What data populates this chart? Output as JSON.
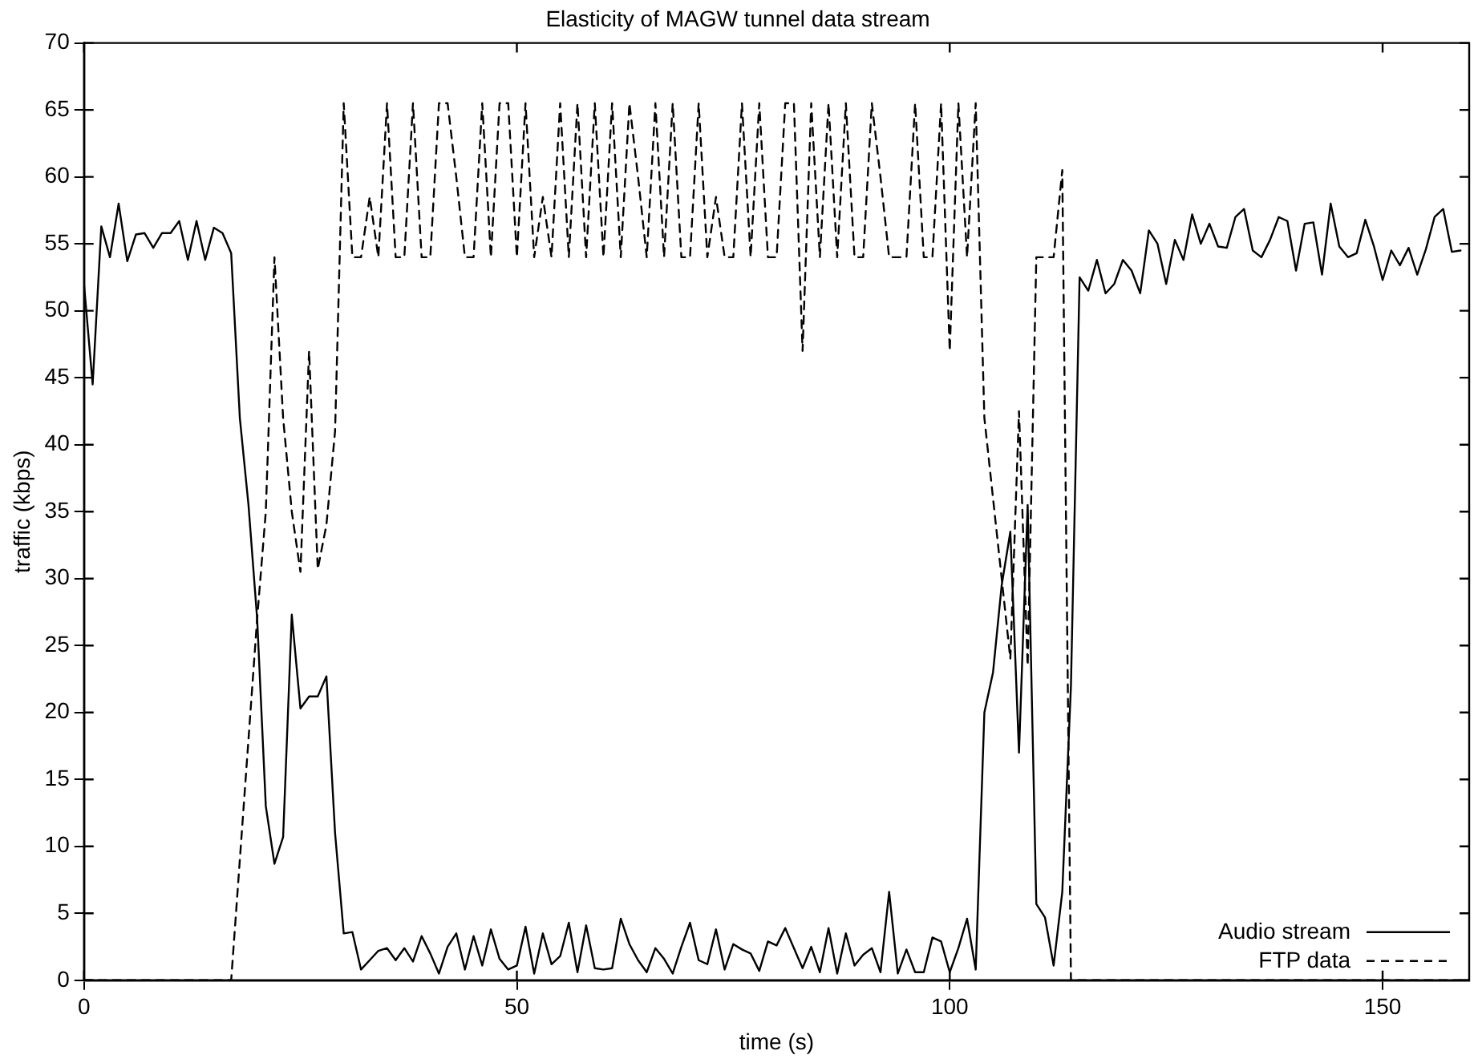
{
  "chart_data": {
    "type": "line",
    "title": "Elasticity of MAGW tunnel data stream",
    "xlabel": "time (s)",
    "ylabel": "traffic (kbps)",
    "xlim": [
      0,
      160
    ],
    "xticks": [
      0,
      50,
      100,
      150
    ],
    "ylim": [
      0,
      70
    ],
    "yticks": [
      0,
      5,
      10,
      15,
      20,
      25,
      30,
      35,
      40,
      45,
      50,
      55,
      60,
      65,
      70
    ],
    "grid": false,
    "legend": "bottom right",
    "marker": "none",
    "x": [
      0,
      1,
      2,
      3,
      4,
      5,
      6,
      7,
      8,
      9,
      10,
      11,
      12,
      13,
      14,
      15,
      16,
      17,
      18,
      19,
      20,
      21,
      22,
      23,
      24,
      25,
      26,
      27,
      28,
      29,
      30,
      31,
      32,
      33,
      34,
      35,
      36,
      37,
      38,
      39,
      40,
      41,
      42,
      43,
      44,
      45,
      46,
      47,
      48,
      49,
      50,
      51,
      52,
      53,
      54,
      55,
      56,
      57,
      58,
      59,
      60,
      61,
      62,
      63,
      64,
      65,
      66,
      67,
      68,
      69,
      70,
      71,
      72,
      73,
      74,
      75,
      76,
      77,
      78,
      79,
      80,
      81,
      82,
      83,
      84,
      85,
      86,
      87,
      88,
      89,
      90,
      91,
      92,
      93,
      94,
      95,
      96,
      97,
      98,
      99,
      100,
      101,
      102,
      103,
      104,
      105,
      106,
      107,
      108,
      109,
      110,
      111,
      112,
      113,
      114,
      115,
      116,
      117,
      118,
      119,
      120,
      121,
      122,
      123,
      124,
      125,
      126,
      127,
      128,
      129,
      130,
      131,
      132,
      133,
      134,
      135,
      136,
      137,
      138,
      139,
      140,
      141,
      142,
      143,
      144,
      145,
      146,
      147,
      148,
      149,
      150,
      151,
      152,
      153,
      154,
      155,
      156,
      157,
      158,
      159
    ],
    "series": [
      {
        "name": "Audio stream",
        "color": "#000000",
        "line_style": "solid",
        "values": [
          52,
          44.5,
          56.3,
          54,
          58,
          53.7,
          55.7,
          55.8,
          54.7,
          55.8,
          55.8,
          56.7,
          53.8,
          56.7,
          53.8,
          56.2,
          55.8,
          54.3,
          42,
          35.5,
          27,
          13,
          8.7,
          10.7,
          27.3,
          20.3,
          21.2,
          21.2,
          22.7,
          11,
          3.5,
          3.6,
          0.8,
          1.5,
          2.2,
          2.4,
          1.5,
          2.4,
          1.4,
          3.3,
          2,
          0.5,
          2.5,
          3.5,
          0.8,
          3.3,
          1.1,
          3.8,
          1.6,
          0.8,
          1.1,
          4,
          0.5,
          3.5,
          1.2,
          1.8,
          4.3,
          0.6,
          4.1,
          0.9,
          0.8,
          0.9,
          4.6,
          2.7,
          1.5,
          0.6,
          2.4,
          1.6,
          0.5,
          2.5,
          4.3,
          1.5,
          1.2,
          3.8,
          0.8,
          2.7,
          2.3,
          2,
          0.7,
          2.9,
          2.6,
          3.9,
          2.4,
          0.9,
          2.5,
          0.6,
          3.9,
          0.5,
          3.5,
          1.1,
          1.9,
          2.4,
          0.6,
          6.6,
          0.5,
          2.3,
          0.6,
          0.6,
          3.2,
          2.9,
          0.6,
          2.4,
          4.6,
          0.8,
          20,
          23,
          29.5,
          33.5,
          17,
          35.5,
          5.7,
          4.7,
          1.1,
          6.6,
          22,
          52.5,
          51.5,
          53.8,
          51.3,
          52,
          53.8,
          53,
          51.3,
          56,
          55,
          52,
          55.3,
          53.8,
          57.2,
          55,
          56.5,
          54.8,
          54.7,
          57,
          57.6,
          54.5,
          54,
          55.3,
          57,
          56.7,
          53,
          56.5,
          56.6,
          52.7,
          58,
          54.8,
          54,
          54.3,
          56.8,
          54.8,
          52.3,
          54.5,
          53.4,
          54.7,
          52.7,
          54.6,
          57,
          57.6,
          54.4,
          54.5
        ]
      },
      {
        "name": "FTP data",
        "color": "#000000",
        "line_style": "dashed",
        "values": [
          0,
          0,
          0,
          0,
          0,
          0,
          0,
          0,
          0,
          0,
          0,
          0,
          0,
          0,
          0,
          0,
          0,
          0,
          9,
          18,
          27,
          35,
          54,
          42,
          35,
          30.5,
          47,
          30.7,
          34,
          41,
          65.5,
          54,
          54,
          58.5,
          54,
          65.5,
          54,
          54,
          65.5,
          54,
          54,
          65.5,
          65.5,
          60,
          54,
          54,
          65.5,
          54,
          65.5,
          65.5,
          54,
          65.5,
          54,
          58.5,
          54,
          65.5,
          54,
          65.5,
          54,
          65.5,
          54,
          65.5,
          54,
          65.5,
          60,
          54,
          65.5,
          54,
          65.5,
          54,
          54,
          65.5,
          54,
          58.5,
          54,
          54,
          65.5,
          54,
          65.5,
          54,
          54,
          65.5,
          65.5,
          47,
          65.5,
          54,
          65.5,
          54,
          65.5,
          54,
          54,
          65.5,
          60,
          54,
          54,
          54,
          65.5,
          54,
          54,
          65.5,
          47,
          65.5,
          54,
          65.5,
          42,
          36,
          30,
          24,
          42.5,
          23.5,
          54,
          54,
          54,
          60.5,
          0,
          0,
          0,
          0,
          0,
          0,
          0,
          0,
          0,
          0,
          0,
          0,
          0,
          0,
          0,
          0,
          0,
          0,
          0,
          0,
          0,
          0,
          0,
          0,
          0,
          0,
          0,
          0,
          0,
          0,
          0,
          0,
          0,
          0,
          0,
          0,
          0,
          0,
          0,
          0,
          0,
          0,
          0,
          0,
          0,
          0
        ]
      }
    ]
  }
}
